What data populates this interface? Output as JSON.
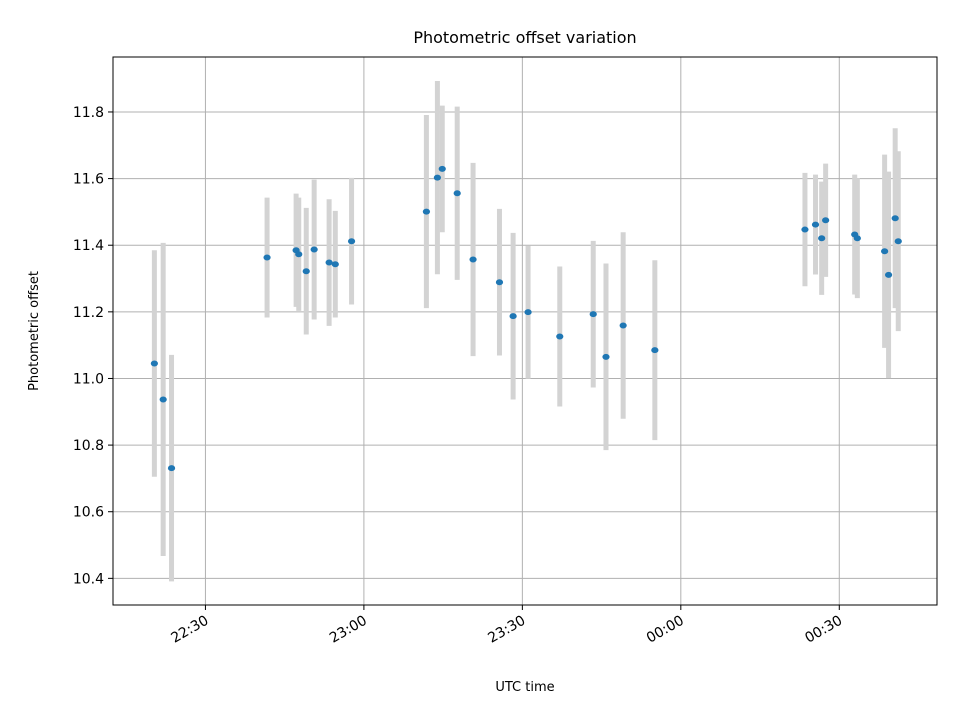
{
  "chart_data": {
    "type": "scatter",
    "title": "Photometric offset variation",
    "xlabel": "UTC time",
    "ylabel": "Photometric offset",
    "grid": true,
    "xlim": [
      "22:12:30",
      "00:48:30"
    ],
    "ylim": [
      10.32,
      11.965
    ],
    "x_ticks": [
      {
        "time": "22:30",
        "label": "22:30"
      },
      {
        "time": "23:00",
        "label": "23:00"
      },
      {
        "time": "23:30",
        "label": "23:30"
      },
      {
        "time": "00:00",
        "label": "00:00"
      },
      {
        "time": "00:30",
        "label": "00:30"
      }
    ],
    "y_ticks": [
      "10.4",
      "10.6",
      "10.8",
      "11.0",
      "11.2",
      "11.4",
      "11.6",
      "11.8"
    ],
    "colors": {
      "point": "#1f77b4",
      "errorbar": "#d3d3d3",
      "grid": "#b0b0b0"
    },
    "series": [
      {
        "points": [
          {
            "x": "22:20:20",
            "y": 11.045,
            "err": 0.34
          },
          {
            "x": "22:22:00",
            "y": 10.937,
            "err": 0.47
          },
          {
            "x": "22:23:35",
            "y": 10.731,
            "err": 0.34
          },
          {
            "x": "22:41:40",
            "y": 11.363,
            "err": 0.18
          },
          {
            "x": "22:47:10",
            "y": 11.385,
            "err": 0.17
          },
          {
            "x": "22:47:40",
            "y": 11.373,
            "err": 0.17
          },
          {
            "x": "22:49:05",
            "y": 11.322,
            "err": 0.19
          },
          {
            "x": "22:50:35",
            "y": 11.387,
            "err": 0.21
          },
          {
            "x": "22:53:25",
            "y": 11.348,
            "err": 0.19
          },
          {
            "x": "22:54:35",
            "y": 11.343,
            "err": 0.16
          },
          {
            "x": "22:57:40",
            "y": 11.412,
            "err": 0.19
          },
          {
            "x": "23:11:50",
            "y": 11.501,
            "err": 0.29
          },
          {
            "x": "23:13:55",
            "y": 11.603,
            "err": 0.29
          },
          {
            "x": "23:14:50",
            "y": 11.629,
            "err": 0.19
          },
          {
            "x": "23:17:40",
            "y": 11.556,
            "err": 0.26
          },
          {
            "x": "23:20:40",
            "y": 11.357,
            "err": 0.29
          },
          {
            "x": "23:25:40",
            "y": 11.289,
            "err": 0.22
          },
          {
            "x": "23:28:15",
            "y": 11.187,
            "err": 0.25
          },
          {
            "x": "23:31:05",
            "y": 11.199,
            "err": 0.2
          },
          {
            "x": "23:37:05",
            "y": 11.126,
            "err": 0.21
          },
          {
            "x": "23:43:25",
            "y": 11.193,
            "err": 0.22
          },
          {
            "x": "23:45:50",
            "y": 11.065,
            "err": 0.28
          },
          {
            "x": "23:49:05",
            "y": 11.159,
            "err": 0.28
          },
          {
            "x": "23:55:05",
            "y": 11.085,
            "err": 0.27
          },
          {
            "x": "00:23:30",
            "y": 11.447,
            "err": 0.17
          },
          {
            "x": "00:25:30",
            "y": 11.462,
            "err": 0.15
          },
          {
            "x": "00:26:40",
            "y": 11.421,
            "err": 0.17
          },
          {
            "x": "00:27:25",
            "y": 11.475,
            "err": 0.17
          },
          {
            "x": "00:32:55",
            "y": 11.432,
            "err": 0.18
          },
          {
            "x": "00:33:25",
            "y": 11.421,
            "err": 0.18
          },
          {
            "x": "00:38:35",
            "y": 11.382,
            "err": 0.29
          },
          {
            "x": "00:39:20",
            "y": 11.311,
            "err": 0.31
          },
          {
            "x": "00:40:35",
            "y": 11.481,
            "err": 0.27
          },
          {
            "x": "00:41:10",
            "y": 11.412,
            "err": 0.27
          }
        ]
      }
    ]
  }
}
